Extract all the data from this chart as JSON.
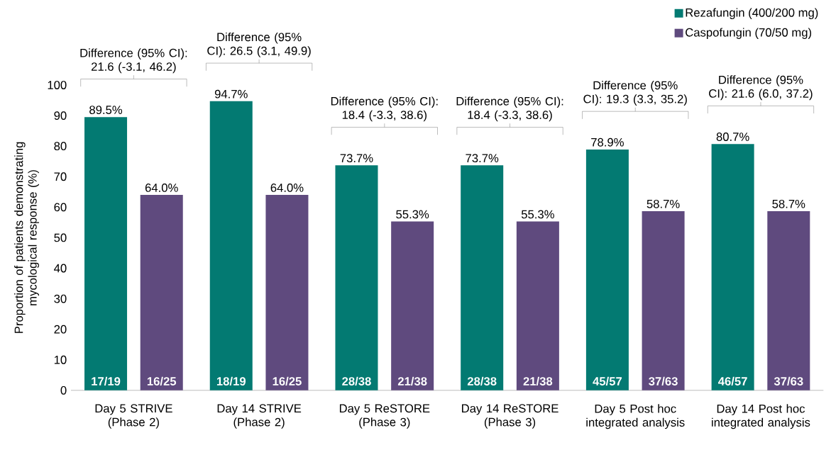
{
  "chart_data": {
    "type": "bar",
    "ylabel": "Proportion of patients demonstrating mycological response (%)",
    "categories": [
      "Day 5 STRIVE (Phase 2)",
      "Day 14 STRIVE (Phase 2)",
      "Day 5 ReSTORE (Phase 3)",
      "Day 14 ReSTORE (Phase 3)",
      "Day 5 Post hoc integrated analysis",
      "Day 14 Post hoc integrated analysis"
    ],
    "series": [
      {
        "name": "Rezafungin (400/200 mg)",
        "color": "#037a72",
        "values": [
          89.5,
          94.7,
          73.7,
          73.7,
          78.9,
          80.7
        ],
        "value_labels": [
          "89.5%",
          "94.7%",
          "73.7%",
          "73.7%",
          "78.9%",
          "80.7%"
        ]
      },
      {
        "name": "Caspofungin (70/50 mg)",
        "color": "#5f4a7e",
        "values": [
          64.0,
          64.0,
          55.3,
          55.3,
          58.7,
          58.7
        ],
        "value_labels": [
          "64.0%",
          "64.0%",
          "55.3%",
          "55.3%",
          "58.7%",
          "58.7%"
        ]
      }
    ],
    "ylim": [
      0,
      100
    ],
    "yticks": [
      0,
      10,
      20,
      30,
      40,
      50,
      60,
      70,
      80,
      90,
      100
    ],
    "grid": false,
    "legend": "top right",
    "annotations": [
      "Difference (95% CI): 21.6 (-3.1, 46.2)",
      "Difference (95% CI): 26.5 (3.1, 49.9)",
      "Difference (95% CI): 18.4 (-3.3, 38.6)",
      "Difference (95% CI): 18.4 (-3.3, 38.6)",
      "Difference (95% CI): 19.3 (3.3, 35.2)",
      "Difference (95% CI): 21.6 (6.0, 37.2)",
      "17/19",
      "16/25",
      "18/19",
      "16/25",
      "28/38",
      "21/38",
      "28/38",
      "21/38",
      "45/57",
      "37/63",
      "46/57",
      "37/63"
    ]
  }
}
